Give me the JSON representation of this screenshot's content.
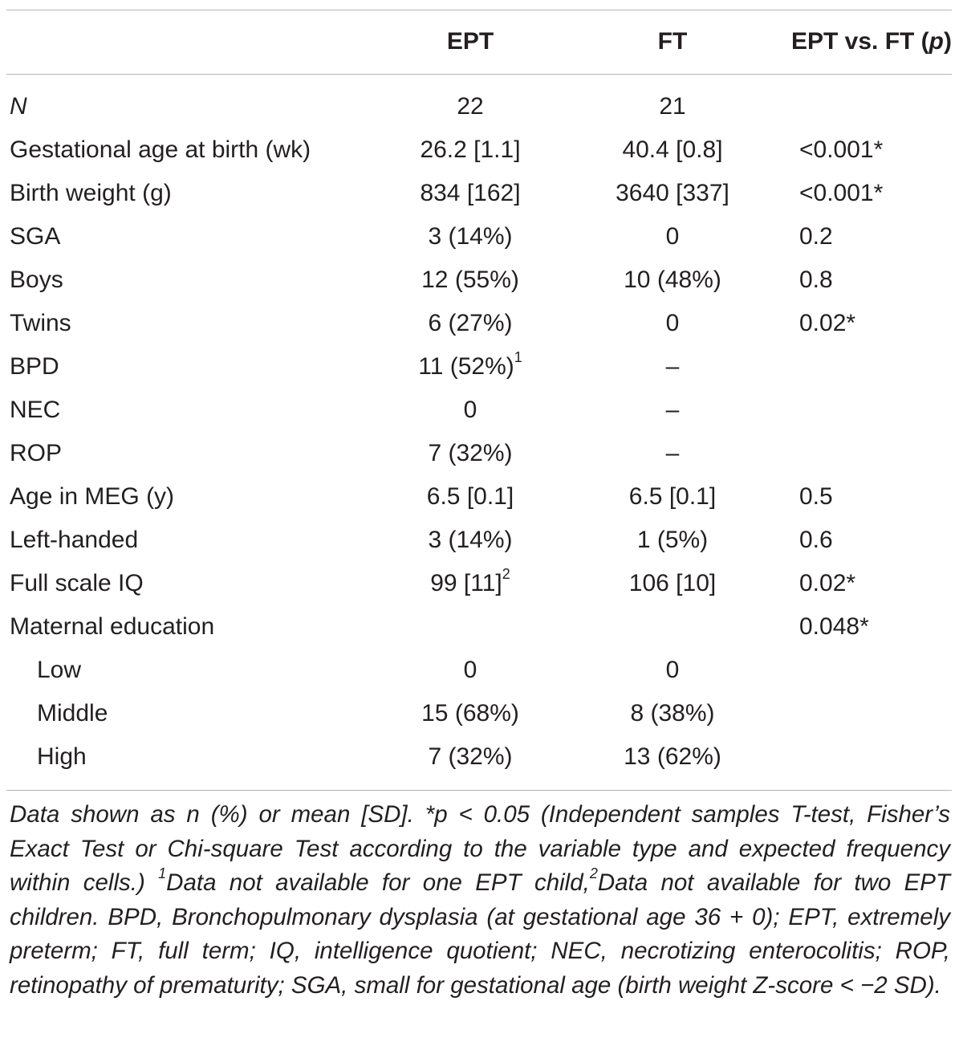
{
  "header": {
    "col_ept": "EPT",
    "col_ft": "FT",
    "col_p": "EPT vs. FT (",
    "col_p_italic": "p",
    "col_p_close": ")"
  },
  "rows": [
    {
      "label": "N",
      "ept": "22",
      "ft": "21",
      "p": ""
    },
    {
      "label": "Gestational age at birth (wk)",
      "ept": "26.2 [1.1]",
      "ft": "40.4 [0.8]",
      "p": "<0.001*"
    },
    {
      "label": "Birth weight (g)",
      "ept": "834 [162]",
      "ft": "3640 [337]",
      "p": "<0.001*"
    },
    {
      "label": "SGA",
      "ept": "3 (14%)",
      "ft": "0",
      "p": "0.2"
    },
    {
      "label": "Boys",
      "ept": "12 (55%)",
      "ft": "10 (48%)",
      "p": "0.8"
    },
    {
      "label": "Twins",
      "ept": "6 (27%)",
      "ft": "0",
      "p": "0.02*"
    },
    {
      "label": "BPD",
      "ept": "11 (52%)",
      "ept_sup": "1",
      "ft": "–",
      "p": ""
    },
    {
      "label": "NEC",
      "ept": "0",
      "ft": "–",
      "p": ""
    },
    {
      "label": "ROP",
      "ept": "7 (32%)",
      "ft": "–",
      "p": ""
    },
    {
      "label": "Age in MEG (y)",
      "ept": "6.5 [0.1]",
      "ft": "6.5 [0.1]",
      "p": "0.5"
    },
    {
      "label": "Left-handed",
      "ept": "3 (14%)",
      "ft": "1 (5%)",
      "p": "0.6"
    },
    {
      "label": "Full scale IQ",
      "ept": "99 [11]",
      "ept_sup": "2",
      "ft": "106 [10]",
      "p": "0.02*"
    },
    {
      "label": "Maternal education",
      "ept": "",
      "ft": "",
      "p": "0.048*"
    },
    {
      "label": "Low",
      "ept": "0",
      "ft": "0",
      "p": ""
    },
    {
      "label": "Middle",
      "ept": "15 (68%)",
      "ft": "8 (38%)",
      "p": ""
    },
    {
      "label": "High",
      "ept": "7 (32%)",
      "ft": "13 (62%)",
      "p": ""
    }
  ],
  "footnote": {
    "part1": "Data shown as n (%) or mean [SD]. *p < 0.05 (Independent samples T-test, Fisher’s Exact Test or Chi-square Test according to the variable type and expected frequency within cells.) ",
    "sup1": "1",
    "part2": "Data not available for one EPT child,",
    "sup2": "2",
    "part3": "Data not available for two EPT children. BPD, Bronchopulmonary dysplasia (at gestational age 36 + 0); EPT, extremely preterm; FT, full term; IQ, intelligence quotient; NEC, necrotizing enterocolitis; ROP, retinopathy of prematurity; SGA, small for gestational age (birth weight Z-score < −2 SD)."
  }
}
